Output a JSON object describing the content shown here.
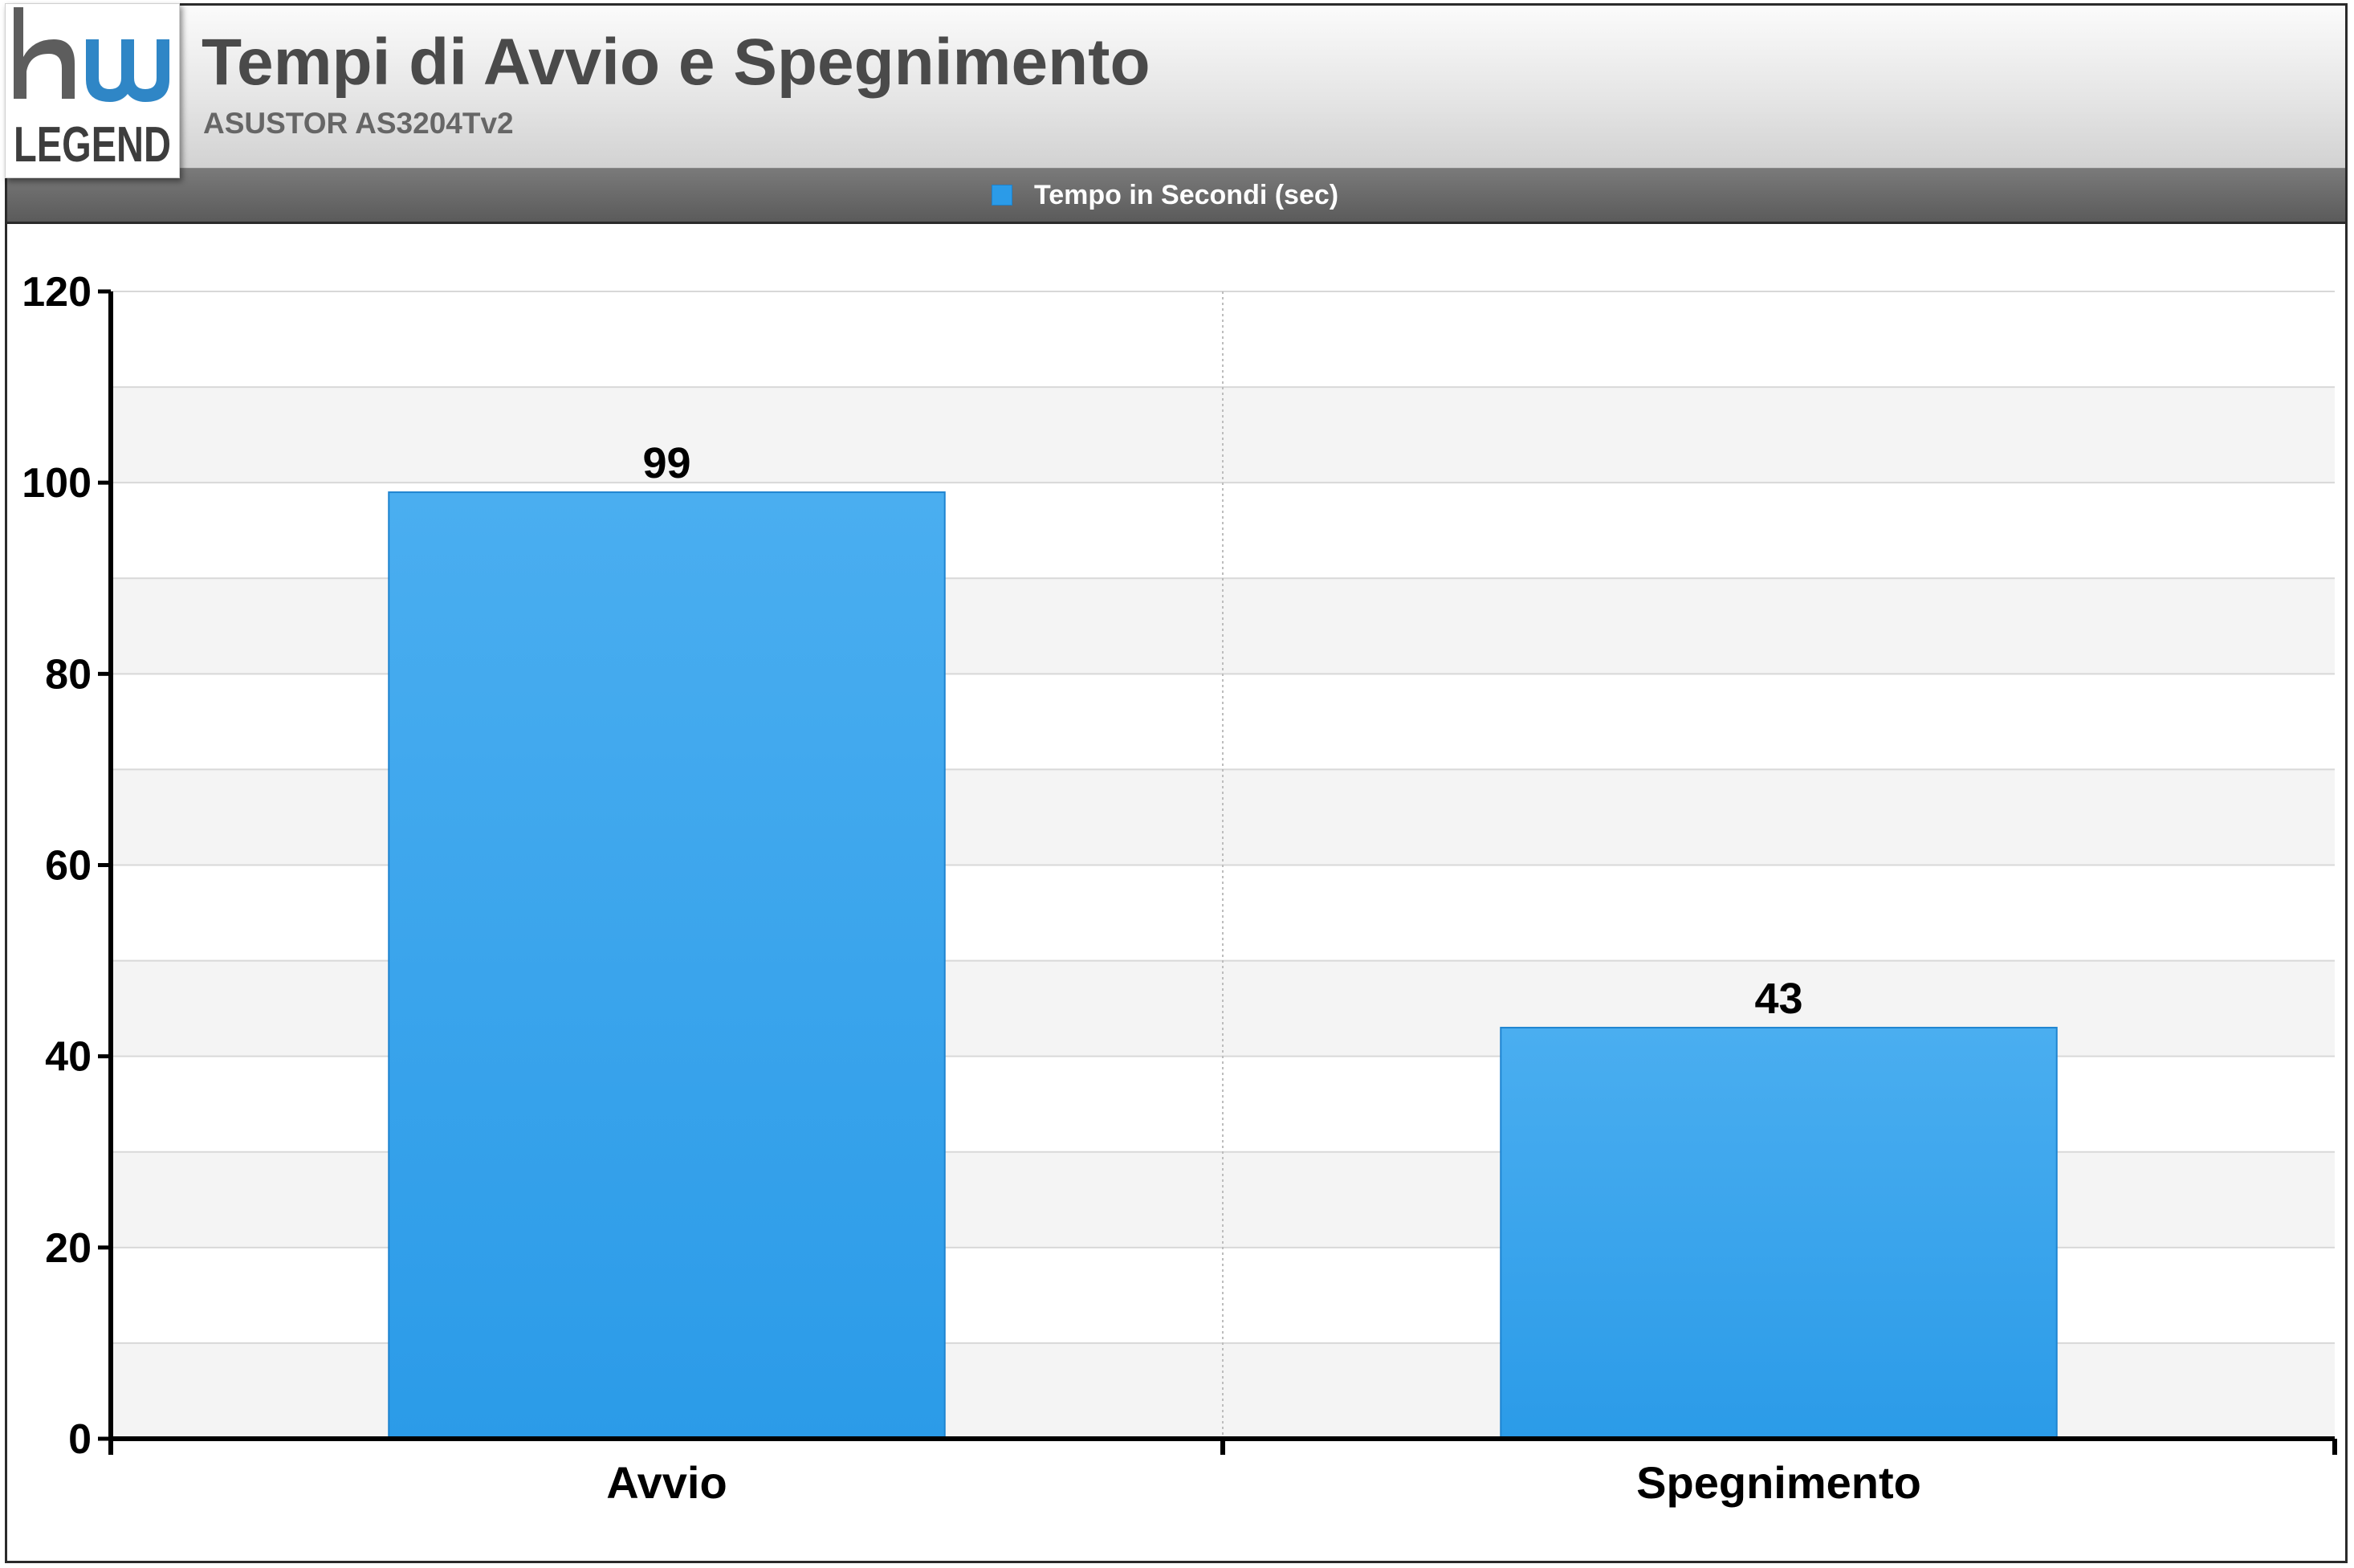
{
  "header": {
    "title": "Tempi di Avvio e Spegnimento",
    "subtitle": "ASUSTOR AS3204Tv2",
    "logo_text": "LEGEND"
  },
  "legend": {
    "label": "Tempo in Secondi (sec)"
  },
  "colors": {
    "bar": "#2b9be8",
    "bar_top": "#4aaef0",
    "bar_border": "#1e84d0",
    "band": "#f4f4f4"
  },
  "chart_data": {
    "type": "bar",
    "categories": [
      "Avvio",
      "Spegnimento"
    ],
    "series": [
      {
        "name": "Tempo in Secondi (sec)",
        "values": [
          99,
          43
        ]
      }
    ],
    "data_labels": [
      "99",
      "43"
    ],
    "ylim": [
      0,
      120
    ],
    "yticks": [
      0,
      20,
      40,
      60,
      80,
      100,
      120
    ],
    "ytick_labels": [
      "0",
      "20",
      "40",
      "60",
      "80",
      "100",
      "120"
    ],
    "grid": true,
    "legend_position": "top-center",
    "xlabel": "",
    "ylabel": ""
  }
}
